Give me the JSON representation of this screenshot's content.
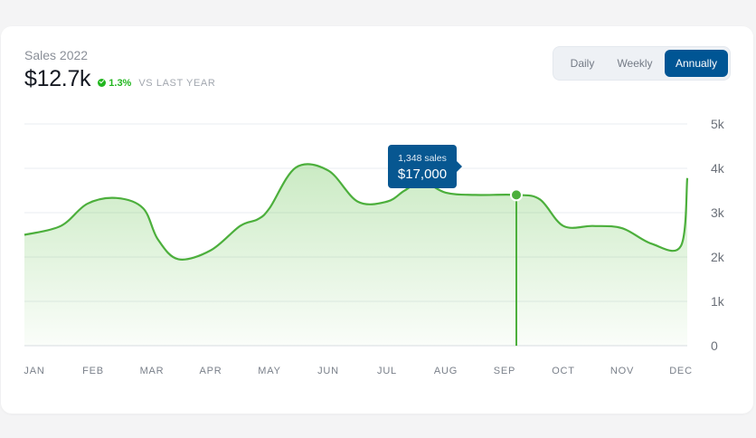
{
  "header": {
    "title": "Sales 2022",
    "value": "$12.7k",
    "change": "1.3%",
    "comparison": "VS LAST YEAR"
  },
  "toggle": {
    "options": [
      "Daily",
      "Weekly",
      "Annually"
    ],
    "selected": "Annually"
  },
  "tooltip": {
    "sales": "1,348 sales",
    "value": "$17,000"
  },
  "colors": {
    "line": "#4caf3c",
    "accent": "#005594",
    "positive": "#22b61f"
  },
  "chart_data": {
    "type": "area",
    "title": "",
    "xlabel": "",
    "ylabel": "",
    "categories": [
      "JAN",
      "FEB",
      "MAR",
      "APR",
      "MAY",
      "JUN",
      "JUL",
      "AUG",
      "SEP",
      "OCT",
      "NOV",
      "DEC"
    ],
    "ytick_labels": [
      "0",
      "1k",
      "2k",
      "3k",
      "4k",
      "5k"
    ],
    "ylim": [
      0,
      5000
    ],
    "grid": true,
    "y_axis_side": "right",
    "highlight": {
      "x": 8.2,
      "y": 3400
    },
    "series": [
      {
        "x": [
          0,
          0.45,
          0.9,
          1.4,
          1.85,
          2.1,
          2.45,
          3.0,
          3.5,
          3.8,
          4.0,
          4.45,
          5.0,
          5.5,
          6.0,
          6.3,
          6.6,
          7.0,
          7.5,
          8.2,
          8.6,
          9.0,
          9.5,
          10.0,
          10.5,
          11.0,
          11.6
        ],
        "y": [
          2500,
          2700,
          3200,
          3330,
          3100,
          2400,
          1950,
          2150,
          2700,
          2850,
          3100,
          4020,
          3950,
          3250,
          3250,
          3500,
          3700,
          3450,
          3400,
          3400,
          3300,
          2700,
          2700,
          2650,
          2300,
          2250,
          3780
        ]
      }
    ]
  }
}
